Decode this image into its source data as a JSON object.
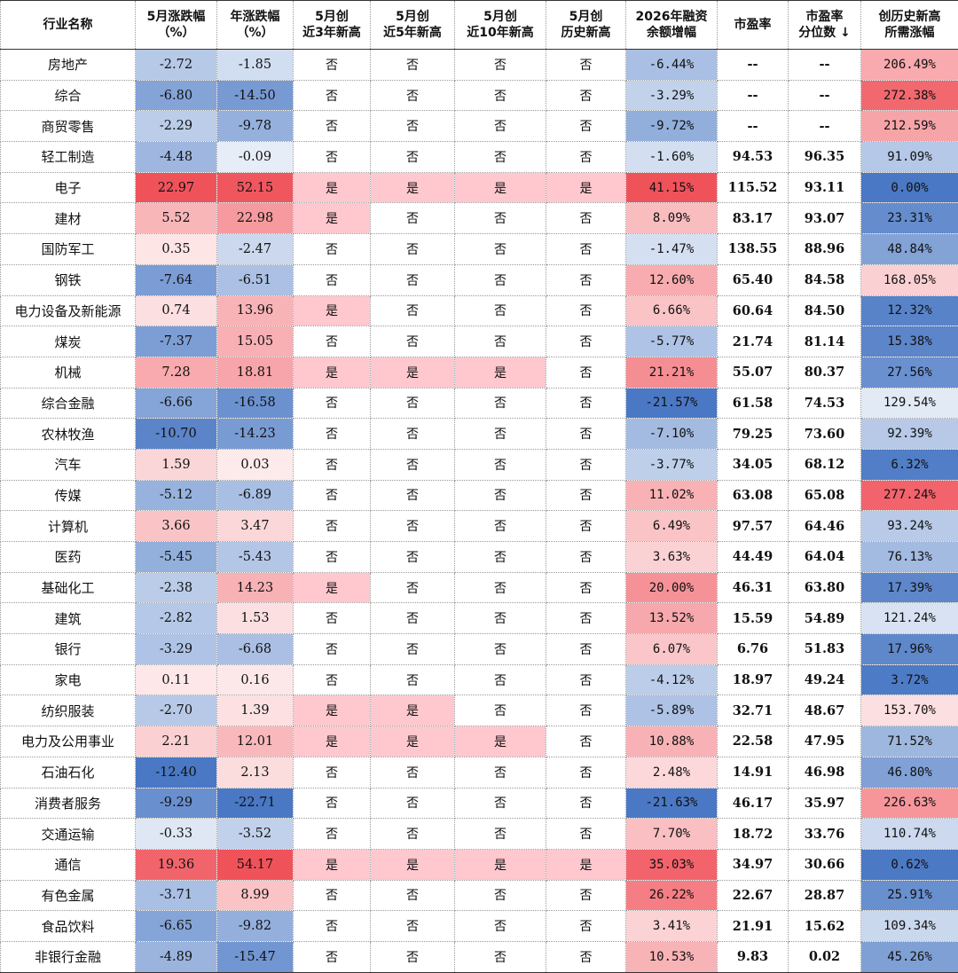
{
  "headers": [
    [
      "行业名称"
    ],
    [
      "5月涨跌幅",
      "（%）"
    ],
    [
      "年涨跌幅",
      "（%）"
    ],
    [
      "5月创",
      "近3年新高"
    ],
    [
      "5月创",
      "近5年新高"
    ],
    [
      "5月创",
      "近10年新高"
    ],
    [
      "5月创",
      "历史新高"
    ],
    [
      "2026年融资",
      "余额增幅"
    ],
    [
      "市盈率"
    ],
    [
      "市盈率",
      "分位数 ↓"
    ],
    [
      "创历史新高",
      "所需涨幅"
    ]
  ],
  "rows": [
    [
      "房地产",
      "-2.72",
      "-1.85",
      "否",
      "否",
      "否",
      "否",
      "-6.44%",
      "--",
      "--",
      "206.49%"
    ],
    [
      "综合",
      "-6.80",
      "-14.50",
      "否",
      "否",
      "否",
      "否",
      "-3.29%",
      "--",
      "--",
      "272.38%"
    ],
    [
      "商贸零售",
      "-2.29",
      "-9.78",
      "否",
      "否",
      "否",
      "否",
      "-9.72%",
      "--",
      "--",
      "212.59%"
    ],
    [
      "轻工制造",
      "-4.48",
      "-0.09",
      "否",
      "否",
      "否",
      "否",
      "-1.60%",
      "94.53",
      "96.35",
      "91.09%"
    ],
    [
      "电子",
      "22.97",
      "52.15",
      "是",
      "是",
      "是",
      "是",
      "41.15%",
      "115.52",
      "93.11",
      "0.00%"
    ],
    [
      "建材",
      "5.52",
      "22.98",
      "是",
      "否",
      "否",
      "否",
      "8.09%",
      "83.17",
      "93.07",
      "23.31%"
    ],
    [
      "国防军工",
      "0.35",
      "-2.47",
      "否",
      "否",
      "否",
      "否",
      "-1.47%",
      "138.55",
      "88.96",
      "48.84%"
    ],
    [
      "钢铁",
      "-7.64",
      "-6.51",
      "否",
      "否",
      "否",
      "否",
      "12.60%",
      "65.40",
      "84.58",
      "168.05%"
    ],
    [
      "电力设备及新能源",
      "0.74",
      "13.96",
      "是",
      "否",
      "否",
      "否",
      "6.66%",
      "60.64",
      "84.50",
      "12.32%"
    ],
    [
      "煤炭",
      "-7.37",
      "15.05",
      "否",
      "否",
      "否",
      "否",
      "-5.77%",
      "21.74",
      "81.14",
      "15.38%"
    ],
    [
      "机械",
      "7.28",
      "18.81",
      "是",
      "是",
      "是",
      "否",
      "21.21%",
      "55.07",
      "80.37",
      "27.56%"
    ],
    [
      "综合金融",
      "-6.66",
      "-16.58",
      "否",
      "否",
      "否",
      "否",
      "-21.57%",
      "61.58",
      "74.53",
      "129.54%"
    ],
    [
      "农林牧渔",
      "-10.70",
      "-14.23",
      "否",
      "否",
      "否",
      "否",
      "-7.10%",
      "79.25",
      "73.60",
      "92.39%"
    ],
    [
      "汽车",
      "1.59",
      "0.03",
      "否",
      "否",
      "否",
      "否",
      "-3.77%",
      "34.05",
      "68.12",
      "6.32%"
    ],
    [
      "传媒",
      "-5.12",
      "-6.89",
      "否",
      "否",
      "否",
      "否",
      "11.02%",
      "63.08",
      "65.08",
      "277.24%"
    ],
    [
      "计算机",
      "3.66",
      "3.47",
      "否",
      "否",
      "否",
      "否",
      "6.49%",
      "97.57",
      "64.46",
      "93.24%"
    ],
    [
      "医药",
      "-5.45",
      "-5.43",
      "否",
      "否",
      "否",
      "否",
      "3.63%",
      "44.49",
      "64.04",
      "76.13%"
    ],
    [
      "基础化工",
      "-2.38",
      "14.23",
      "是",
      "否",
      "否",
      "否",
      "20.00%",
      "46.31",
      "63.80",
      "17.39%"
    ],
    [
      "建筑",
      "-2.82",
      "1.53",
      "否",
      "否",
      "否",
      "否",
      "13.52%",
      "15.59",
      "54.89",
      "121.24%"
    ],
    [
      "银行",
      "-3.29",
      "-6.68",
      "否",
      "否",
      "否",
      "否",
      "6.07%",
      "6.76",
      "51.83",
      "17.96%"
    ],
    [
      "家电",
      "0.11",
      "0.16",
      "否",
      "否",
      "否",
      "否",
      "-4.12%",
      "18.97",
      "49.24",
      "3.72%"
    ],
    [
      "纺织服装",
      "-2.70",
      "1.39",
      "是",
      "是",
      "否",
      "否",
      "-5.89%",
      "32.71",
      "48.67",
      "153.70%"
    ],
    [
      "电力及公用事业",
      "2.21",
      "12.01",
      "是",
      "是",
      "是",
      "否",
      "10.88%",
      "22.58",
      "47.95",
      "71.52%"
    ],
    [
      "石油石化",
      "-12.40",
      "2.13",
      "否",
      "否",
      "否",
      "否",
      "2.48%",
      "14.91",
      "46.98",
      "46.80%"
    ],
    [
      "消费者服务",
      "-9.29",
      "-22.71",
      "否",
      "否",
      "否",
      "否",
      "-21.63%",
      "46.17",
      "35.97",
      "226.63%"
    ],
    [
      "交通运输",
      "-0.33",
      "-3.52",
      "否",
      "否",
      "否",
      "否",
      "7.70%",
      "18.72",
      "33.76",
      "110.74%"
    ],
    [
      "通信",
      "19.36",
      "54.17",
      "是",
      "是",
      "是",
      "是",
      "35.03%",
      "34.97",
      "30.66",
      "0.62%"
    ],
    [
      "有色金属",
      "-3.71",
      "8.99",
      "否",
      "否",
      "否",
      "否",
      "26.22%",
      "22.67",
      "28.87",
      "25.91%"
    ],
    [
      "食品饮料",
      "-6.65",
      "-9.82",
      "否",
      "否",
      "否",
      "否",
      "3.41%",
      "21.91",
      "15.62",
      "109.34%"
    ],
    [
      "非银行金融",
      "-4.89",
      "-15.47",
      "否",
      "否",
      "否",
      "否",
      "10.53%",
      "9.83",
      "0.02",
      "45.26%"
    ]
  ],
  "colors": {
    "positive": "#f0525a",
    "negative": "#4a78c4",
    "yes_cell": "#ffc7ce",
    "header_border": "#333333"
  }
}
